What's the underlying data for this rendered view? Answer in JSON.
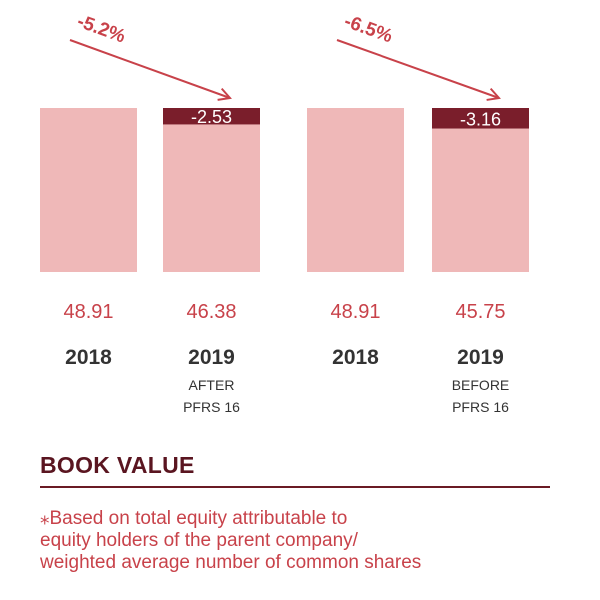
{
  "chart_data": {
    "type": "bar",
    "title": "BOOK VALUE",
    "categories": [
      {
        "year": "2018",
        "sub": [
          "",
          ""
        ]
      },
      {
        "year": "2019",
        "sub": [
          "AFTER",
          "PFRS 16"
        ]
      },
      {
        "year": "2018",
        "sub": [
          "",
          ""
        ]
      },
      {
        "year": "2019",
        "sub": [
          "BEFORE",
          "PFRS 16"
        ]
      }
    ],
    "values": [
      48.91,
      46.38,
      48.91,
      45.75
    ],
    "value_labels": [
      "48.91",
      "46.38",
      "48.91",
      "45.75"
    ],
    "deltas": [
      {
        "bar_index": 1,
        "value": -2.53,
        "label": "-2.53"
      },
      {
        "bar_index": 3,
        "value": -3.16,
        "label": "-3.16"
      }
    ],
    "percent_changes": [
      {
        "from_index": 0,
        "to_index": 1,
        "label": "-5.2%"
      },
      {
        "from_index": 2,
        "to_index": 3,
        "label": "-6.5%"
      }
    ],
    "colors": {
      "bar": "#efb8b8",
      "delta": "#7a1e2b",
      "accent": "#c8424a",
      "title": "#5a1520"
    }
  },
  "footnote": [
    "⁎Based on total equity attributable to",
    "equity holders of the parent company/",
    "weighted average number of common shares"
  ]
}
